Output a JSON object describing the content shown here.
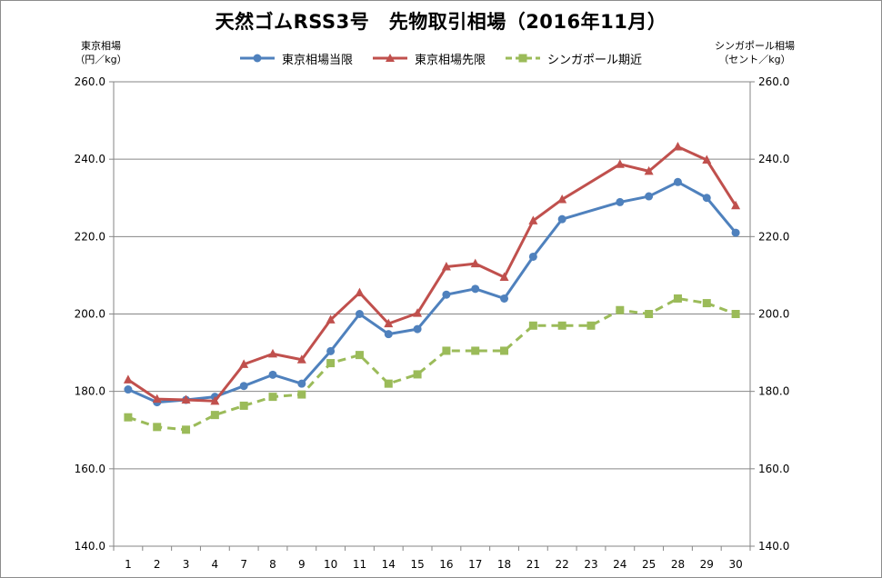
{
  "chart_data": {
    "type": "line",
    "title": "天然ゴムRSS3号　先物取引相場（2016年11月）",
    "y_left_label_line1": "東京相場",
    "y_left_label_line2": "（円／kg）",
    "y_right_label_line1": "シンガポール相場",
    "y_right_label_line2": "（セント／kg）",
    "categories": [
      "1",
      "2",
      "3",
      "4",
      "7",
      "8",
      "9",
      "10",
      "11",
      "14",
      "15",
      "16",
      "17",
      "18",
      "21",
      "22",
      "23",
      "24",
      "25",
      "28",
      "29",
      "30"
    ],
    "ylim": [
      140,
      260
    ],
    "y_ticks": [
      "140.0",
      "160.0",
      "180.0",
      "200.0",
      "220.0",
      "240.0",
      "260.0"
    ],
    "grid": true,
    "legend_position": "top",
    "series": [
      {
        "name": "東京相場当限",
        "color": "#4f81bd",
        "marker": "circle",
        "dash": "solid",
        "connect_gaps": true,
        "values": [
          180.5,
          177.2,
          177.8,
          178.6,
          181.4,
          184.3,
          182.0,
          190.4,
          200.0,
          194.8,
          196.1,
          205.0,
          206.5,
          204.0,
          214.8,
          224.5,
          null,
          228.9,
          230.4,
          234.1,
          230.0,
          221.0
        ]
      },
      {
        "name": "東京相場先限",
        "color": "#c0504d",
        "marker": "triangle",
        "dash": "solid",
        "connect_gaps": true,
        "values": [
          183.0,
          178.0,
          177.8,
          177.5,
          187.0,
          189.7,
          188.2,
          198.5,
          205.5,
          197.5,
          200.2,
          212.2,
          213.0,
          209.5,
          224.1,
          229.6,
          null,
          238.7,
          236.9,
          243.2,
          239.8,
          228.0
        ]
      },
      {
        "name": "シンガポール期近",
        "color": "#9bbb59",
        "marker": "square",
        "dash": "dashed",
        "connect_gaps": false,
        "values": [
          173.3,
          170.8,
          170.1,
          173.9,
          176.3,
          178.6,
          179.2,
          187.3,
          189.4,
          182.0,
          184.4,
          190.5,
          190.5,
          190.5,
          197.0,
          197.0,
          197.0,
          201.0,
          200.0,
          204.0,
          202.8,
          200.0
        ]
      }
    ]
  }
}
